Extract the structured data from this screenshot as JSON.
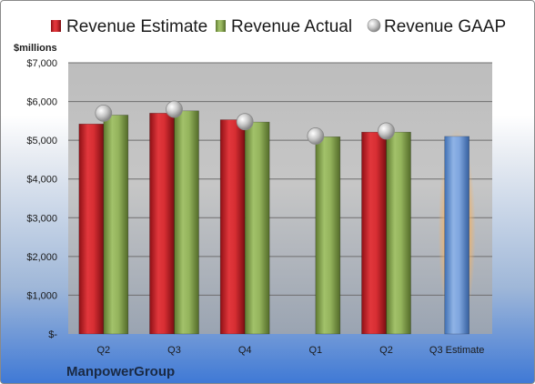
{
  "chart_data": {
    "type": "bar",
    "ylabel": "$millions",
    "ylim": [
      0,
      7000
    ],
    "yticks": [
      0,
      1000,
      2000,
      3000,
      4000,
      5000,
      6000,
      7000
    ],
    "ytick_labels": [
      "$-",
      "$1,000",
      "$2,000",
      "$3,000",
      "$4,000",
      "$5,000",
      "$6,000",
      "$7,000"
    ],
    "categories": [
      "Q2",
      "Q3",
      "Q4",
      "Q1",
      "Q2",
      "Q3 Estimate"
    ],
    "series": [
      {
        "name": "Revenue Estimate",
        "kind": "bar",
        "color": "#c9242b",
        "values": [
          5420,
          5700,
          5530,
          null,
          5210,
          null
        ]
      },
      {
        "name": "Revenue Actual",
        "kind": "bar",
        "color": "#8aa854",
        "values": [
          5650,
          5760,
          5470,
          5090,
          5210,
          null
        ]
      },
      {
        "name": "Revenue GAAP",
        "kind": "marker",
        "color": "#b8b8b8",
        "values": [
          5700,
          5800,
          5480,
          5110,
          5240,
          null
        ]
      },
      {
        "name": "Q3 Estimate",
        "kind": "bar",
        "color": "#6f9bd8",
        "highlight": "#f2b266",
        "values": [
          null,
          null,
          null,
          null,
          null,
          5100
        ]
      }
    ],
    "grid": true,
    "legend": "top"
  },
  "company": "ManpowerGroup"
}
